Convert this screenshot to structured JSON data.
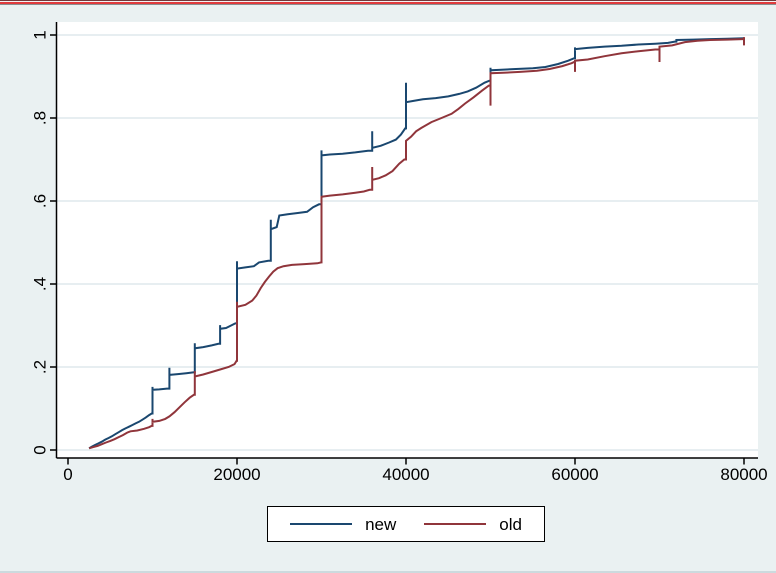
{
  "window": {
    "top_border_stripes": [
      {
        "color": "#72383a",
        "height": 1
      },
      {
        "color": "#f2f2f2",
        "height": 1
      },
      {
        "color": "#e03b3d",
        "height": 2
      },
      {
        "color": "#8b8e90",
        "height": 1
      }
    ],
    "background_color": "#eaf1f2"
  },
  "chart_data": {
    "type": "line",
    "subtype": "empirical-cdf-step",
    "title": "",
    "xlabel": "",
    "ylabel": "",
    "xlim": [
      0,
      80000
    ],
    "ylim": [
      0,
      1
    ],
    "grid": "horizontal",
    "grid_color": "#e7eef1",
    "plot_bg_color": "#ffffff",
    "axis_color": "#000000",
    "legend_position": "bottom-center",
    "x_ticks": [
      0,
      20000,
      40000,
      60000,
      80000
    ],
    "x_tick_labels": [
      "0",
      "20000",
      "40000",
      "60000",
      "80000"
    ],
    "y_ticks": [
      1,
      0.8,
      0.6,
      0.4,
      0.2,
      0
    ],
    "y_tick_labels": [
      "1",
      ".8",
      ".6",
      ".4",
      ".2",
      "0"
    ],
    "series": [
      {
        "name": "new",
        "color": "#1a476f",
        "points": [
          [
            2500,
            0.004
          ],
          [
            2800,
            0.008
          ],
          [
            3200,
            0.012
          ],
          [
            3600,
            0.016
          ],
          [
            4000,
            0.02
          ],
          [
            4400,
            0.025
          ],
          [
            4800,
            0.029
          ],
          [
            5200,
            0.033
          ],
          [
            5600,
            0.038
          ],
          [
            6000,
            0.043
          ],
          [
            6400,
            0.048
          ],
          [
            6800,
            0.052
          ],
          [
            7200,
            0.056
          ],
          [
            7600,
            0.06
          ],
          [
            8000,
            0.064
          ],
          [
            8400,
            0.068
          ],
          [
            8800,
            0.073
          ],
          [
            9200,
            0.078
          ],
          [
            9600,
            0.084
          ],
          [
            9900,
            0.088
          ],
          [
            10000,
            0.088
          ],
          [
            10000,
            0.152
          ],
          [
            10000,
            0.145
          ],
          [
            10800,
            0.146
          ],
          [
            11700,
            0.148
          ],
          [
            12000,
            0.148
          ],
          [
            12000,
            0.198
          ],
          [
            12000,
            0.181
          ],
          [
            13000,
            0.183
          ],
          [
            14000,
            0.185
          ],
          [
            14800,
            0.187
          ],
          [
            15000,
            0.187
          ],
          [
            15000,
            0.257
          ],
          [
            15000,
            0.245
          ],
          [
            16000,
            0.248
          ],
          [
            17000,
            0.252
          ],
          [
            17800,
            0.256
          ],
          [
            18000,
            0.256
          ],
          [
            18000,
            0.301
          ],
          [
            18000,
            0.292
          ],
          [
            18700,
            0.294
          ],
          [
            19300,
            0.3
          ],
          [
            19800,
            0.305
          ],
          [
            20000,
            0.305
          ],
          [
            20000,
            0.455
          ],
          [
            20000,
            0.437
          ],
          [
            21000,
            0.44
          ],
          [
            22000,
            0.443
          ],
          [
            22600,
            0.452
          ],
          [
            23700,
            0.456
          ],
          [
            24000,
            0.456
          ],
          [
            24000,
            0.555
          ],
          [
            24000,
            0.532
          ],
          [
            24700,
            0.537
          ],
          [
            25000,
            0.565
          ],
          [
            26000,
            0.568
          ],
          [
            27200,
            0.571
          ],
          [
            28300,
            0.574
          ],
          [
            29000,
            0.585
          ],
          [
            29700,
            0.592
          ],
          [
            30000,
            0.592
          ],
          [
            30000,
            0.722
          ],
          [
            30000,
            0.71
          ],
          [
            31000,
            0.712
          ],
          [
            32500,
            0.714
          ],
          [
            34000,
            0.717
          ],
          [
            35500,
            0.721
          ],
          [
            36000,
            0.721
          ],
          [
            36000,
            0.768
          ],
          [
            36000,
            0.728
          ],
          [
            37000,
            0.733
          ],
          [
            38000,
            0.741
          ],
          [
            38800,
            0.748
          ],
          [
            39400,
            0.76
          ],
          [
            39900,
            0.775
          ],
          [
            40000,
            0.775
          ],
          [
            40000,
            0.885
          ],
          [
            40000,
            0.838
          ],
          [
            40800,
            0.841
          ],
          [
            42000,
            0.845
          ],
          [
            43500,
            0.848
          ],
          [
            45000,
            0.852
          ],
          [
            46300,
            0.858
          ],
          [
            47300,
            0.864
          ],
          [
            48300,
            0.873
          ],
          [
            49300,
            0.885
          ],
          [
            49900,
            0.89
          ],
          [
            50000,
            0.89
          ],
          [
            50000,
            0.921
          ],
          [
            50000,
            0.915
          ],
          [
            51000,
            0.916
          ],
          [
            53000,
            0.918
          ],
          [
            55000,
            0.92
          ],
          [
            56500,
            0.923
          ],
          [
            58000,
            0.93
          ],
          [
            59200,
            0.938
          ],
          [
            59900,
            0.944
          ],
          [
            60000,
            0.944
          ],
          [
            60000,
            0.97
          ],
          [
            60000,
            0.966
          ],
          [
            61500,
            0.969
          ],
          [
            63500,
            0.972
          ],
          [
            65500,
            0.974
          ],
          [
            67500,
            0.977
          ],
          [
            69500,
            0.979
          ],
          [
            71000,
            0.981
          ],
          [
            71800,
            0.984
          ],
          [
            72000,
            0.984
          ],
          [
            72000,
            0.988
          ],
          [
            74000,
            0.989
          ],
          [
            76000,
            0.99
          ],
          [
            78000,
            0.991
          ],
          [
            80000,
            0.992
          ]
        ]
      },
      {
        "name": "old",
        "color": "#90353b",
        "points": [
          [
            2500,
            0.004
          ],
          [
            3000,
            0.007
          ],
          [
            3500,
            0.01
          ],
          [
            4000,
            0.014
          ],
          [
            4500,
            0.018
          ],
          [
            5000,
            0.022
          ],
          [
            5500,
            0.026
          ],
          [
            6000,
            0.031
          ],
          [
            6500,
            0.036
          ],
          [
            7000,
            0.042
          ],
          [
            7400,
            0.045
          ],
          [
            8200,
            0.047
          ],
          [
            9000,
            0.051
          ],
          [
            9600,
            0.055
          ],
          [
            9900,
            0.058
          ],
          [
            10000,
            0.058
          ],
          [
            10000,
            0.075
          ],
          [
            10000,
            0.068
          ],
          [
            10800,
            0.07
          ],
          [
            11500,
            0.075
          ],
          [
            12000,
            0.081
          ],
          [
            12600,
            0.091
          ],
          [
            13200,
            0.103
          ],
          [
            13800,
            0.115
          ],
          [
            14400,
            0.126
          ],
          [
            14900,
            0.133
          ],
          [
            15000,
            0.133
          ],
          [
            15000,
            0.19
          ],
          [
            15000,
            0.177
          ],
          [
            16000,
            0.182
          ],
          [
            17000,
            0.188
          ],
          [
            18000,
            0.194
          ],
          [
            19000,
            0.2
          ],
          [
            19700,
            0.207
          ],
          [
            19950,
            0.215
          ],
          [
            20000,
            0.215
          ],
          [
            20000,
            0.357
          ],
          [
            20000,
            0.345
          ],
          [
            21000,
            0.35
          ],
          [
            21800,
            0.36
          ],
          [
            22300,
            0.372
          ],
          [
            22800,
            0.39
          ],
          [
            23300,
            0.405
          ],
          [
            23800,
            0.418
          ],
          [
            24300,
            0.43
          ],
          [
            24800,
            0.438
          ],
          [
            25500,
            0.443
          ],
          [
            26500,
            0.446
          ],
          [
            28000,
            0.448
          ],
          [
            29500,
            0.45
          ],
          [
            29950,
            0.452
          ],
          [
            30000,
            0.452
          ],
          [
            30000,
            0.61
          ],
          [
            31000,
            0.613
          ],
          [
            32500,
            0.616
          ],
          [
            34000,
            0.62
          ],
          [
            35000,
            0.623
          ],
          [
            35700,
            0.627
          ],
          [
            36000,
            0.627
          ],
          [
            36000,
            0.682
          ],
          [
            36000,
            0.651
          ],
          [
            36800,
            0.655
          ],
          [
            37600,
            0.662
          ],
          [
            38400,
            0.672
          ],
          [
            39200,
            0.69
          ],
          [
            39800,
            0.7
          ],
          [
            40000,
            0.7
          ],
          [
            40000,
            0.745
          ],
          [
            40600,
            0.755
          ],
          [
            41200,
            0.768
          ],
          [
            41800,
            0.776
          ],
          [
            43000,
            0.79
          ],
          [
            44200,
            0.8
          ],
          [
            45400,
            0.81
          ],
          [
            46200,
            0.822
          ],
          [
            47000,
            0.835
          ],
          [
            48000,
            0.85
          ],
          [
            49000,
            0.866
          ],
          [
            49800,
            0.878
          ],
          [
            50000,
            0.878
          ],
          [
            50000,
            0.83
          ],
          [
            50000,
            0.908
          ],
          [
            51500,
            0.909
          ],
          [
            53500,
            0.911
          ],
          [
            55500,
            0.914
          ],
          [
            57000,
            0.918
          ],
          [
            58500,
            0.925
          ],
          [
            59600,
            0.932
          ],
          [
            60000,
            0.936
          ],
          [
            60000,
            0.911
          ],
          [
            60000,
            0.938
          ],
          [
            61500,
            0.941
          ],
          [
            63500,
            0.949
          ],
          [
            65500,
            0.956
          ],
          [
            67500,
            0.961
          ],
          [
            69500,
            0.965
          ],
          [
            70000,
            0.965
          ],
          [
            70000,
            0.935
          ],
          [
            70000,
            0.972
          ],
          [
            71500,
            0.975
          ],
          [
            73000,
            0.983
          ],
          [
            74500,
            0.986
          ],
          [
            76000,
            0.988
          ],
          [
            78000,
            0.989
          ],
          [
            79800,
            0.99
          ],
          [
            80000,
            0.99
          ],
          [
            80000,
            0.975
          ],
          [
            80000,
            0.995
          ]
        ]
      }
    ]
  }
}
